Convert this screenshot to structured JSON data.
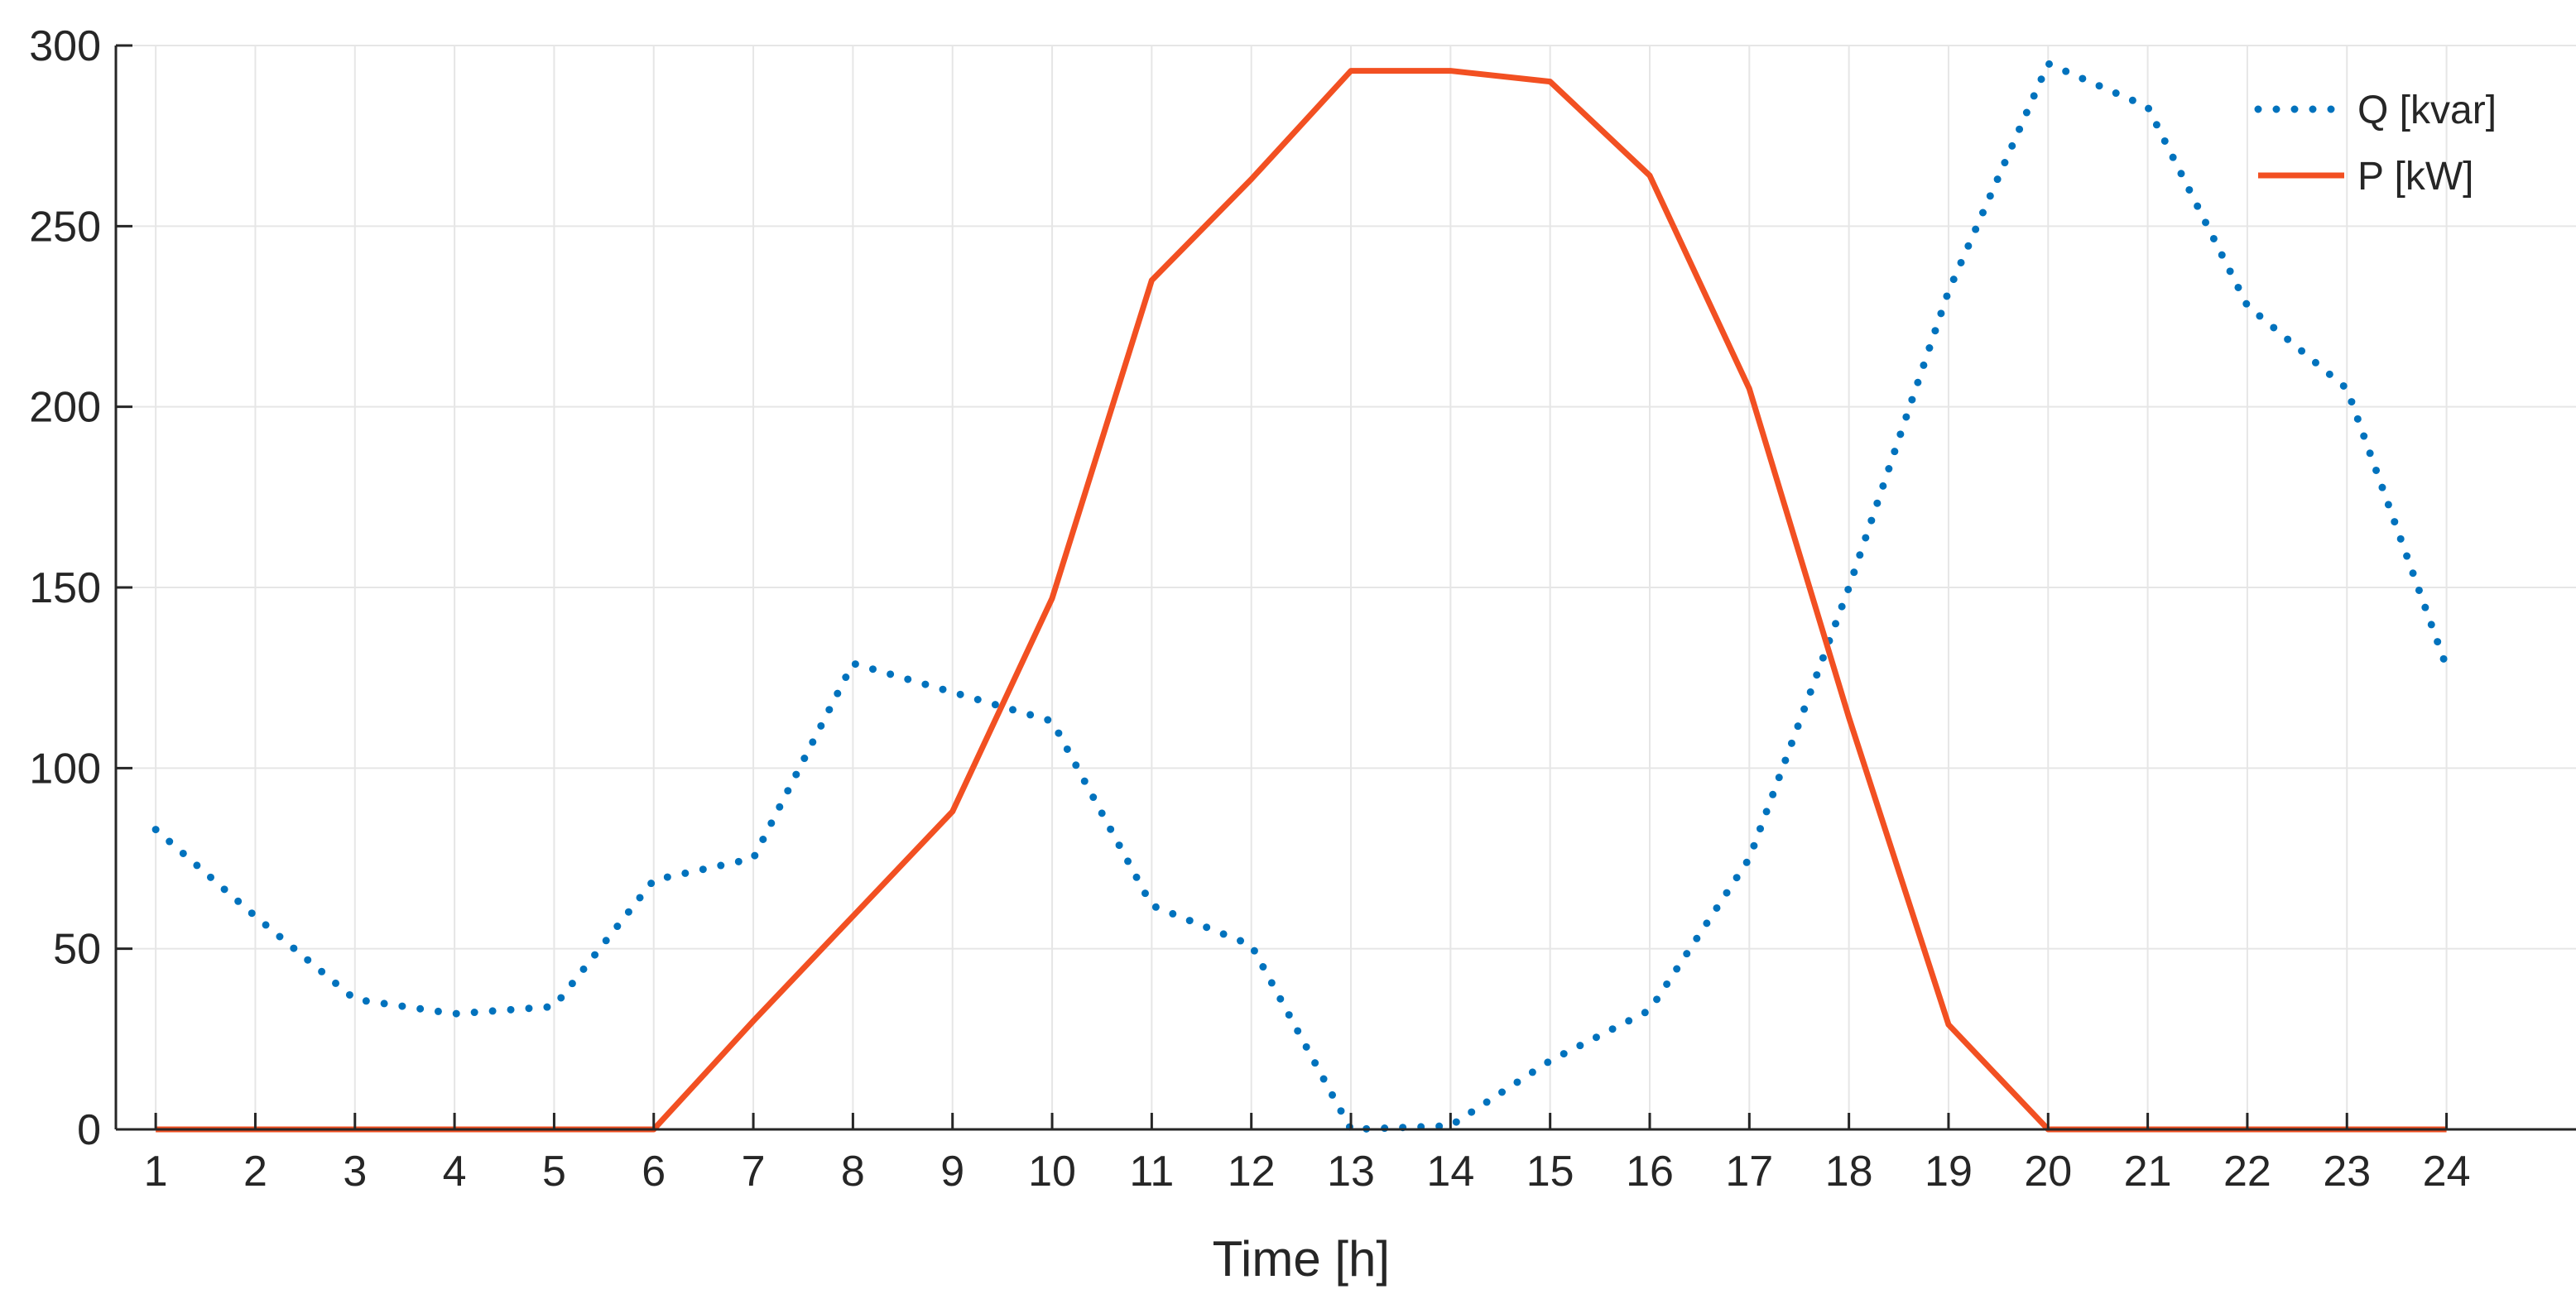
{
  "chart_data": {
    "type": "line",
    "title": "",
    "xlabel": "Time [h]",
    "ylabel": "",
    "x": [
      1,
      2,
      3,
      4,
      5,
      6,
      7,
      8,
      9,
      10,
      11,
      12,
      13,
      14,
      15,
      16,
      17,
      18,
      19,
      20,
      21,
      22,
      23,
      24
    ],
    "xlim": [
      0.6,
      25.3
    ],
    "ylim": [
      0,
      300
    ],
    "yticks": [
      0,
      50,
      100,
      150,
      200,
      250,
      300
    ],
    "grid": true,
    "legend": "top-right",
    "series": [
      {
        "name": "Q [kvar]",
        "style": "dotted",
        "color": "#0072BD",
        "values": [
          83,
          59,
          36,
          32,
          34,
          69,
          75,
          129,
          121,
          113,
          62,
          51,
          0,
          1,
          19,
          33,
          75,
          150,
          232,
          295,
          283,
          228,
          205,
          128
        ]
      },
      {
        "name": "P [kW]",
        "style": "solid",
        "color": "#F25022",
        "values": [
          0,
          0,
          0,
          0,
          0,
          0,
          30,
          59,
          88,
          147,
          235,
          263,
          293,
          293,
          290,
          264,
          205,
          114,
          29,
          0,
          0,
          0,
          0,
          0
        ]
      }
    ]
  }
}
